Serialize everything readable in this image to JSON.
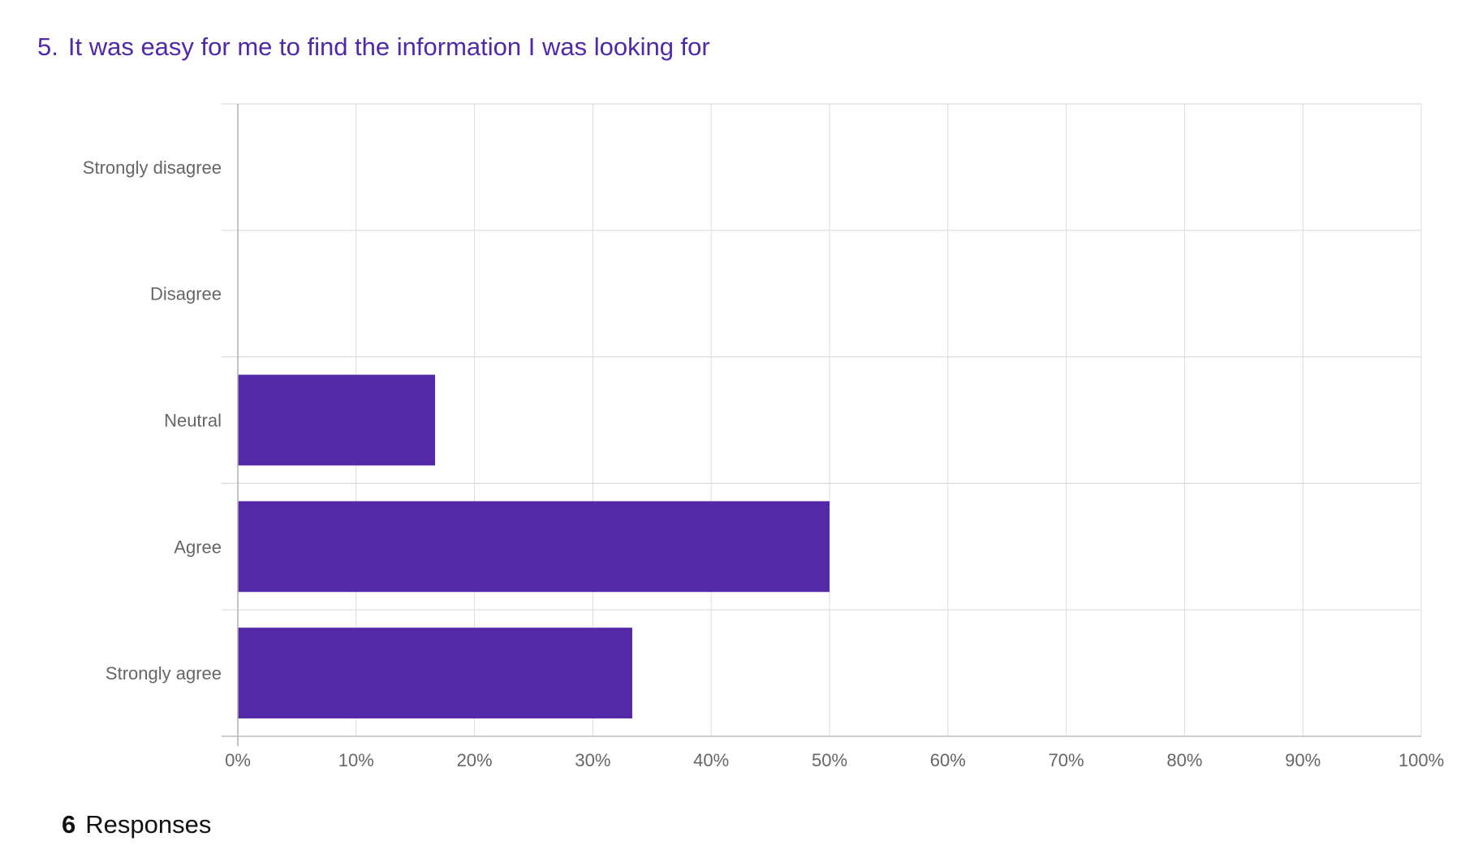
{
  "question": {
    "number": "5.",
    "text": "It was easy for me to find the information I was looking for"
  },
  "responses": {
    "count": "6",
    "label": "Responses"
  },
  "colors": {
    "bar": "#5429a8",
    "title": "#5128a8",
    "grid": "#dcdcdc",
    "axis": "#b0b0b0",
    "label": "#666666"
  },
  "chart_data": {
    "type": "bar",
    "orientation": "horizontal",
    "categories": [
      "Strongly disagree",
      "Disagree",
      "Neutral",
      "Agree",
      "Strongly agree"
    ],
    "values": [
      0,
      0,
      16.67,
      50,
      33.33
    ],
    "unit": "%",
    "xlim": [
      0,
      100
    ],
    "xticks": [
      "0%",
      "10%",
      "20%",
      "30%",
      "40%",
      "50%",
      "60%",
      "70%",
      "80%",
      "90%",
      "100%"
    ],
    "title": "5.  It was easy for me to find the information I was looking for",
    "xlabel": "",
    "ylabel": "",
    "grid": true,
    "legend": false
  }
}
